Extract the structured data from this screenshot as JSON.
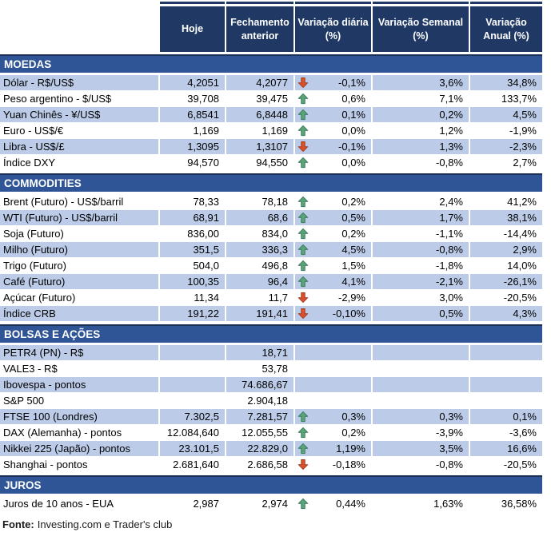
{
  "table": {
    "columns": [
      "",
      "Hoje",
      "Fechamento anterior",
      "Variação diária (%)",
      "Variação Semanal (%)",
      "Variação Anual (%)"
    ]
  },
  "sections": [
    {
      "title": "MOEDAS",
      "first_row_shaded": true,
      "rows": [
        {
          "label": "Dólar - R$/US$",
          "hoje": "4,2051",
          "fech": "4,2077",
          "arrow": "down",
          "vdia": "-0,1%",
          "vsem": "3,6%",
          "vanual": "34,8%"
        },
        {
          "label": "Peso argentino - $/US$",
          "hoje": "39,708",
          "fech": "39,475",
          "arrow": "up",
          "vdia": "0,6%",
          "vsem": "7,1%",
          "vanual": "133,7%"
        },
        {
          "label": "Yuan Chinês - ¥/US$",
          "hoje": "6,8541",
          "fech": "6,8448",
          "arrow": "up",
          "vdia": "0,1%",
          "vsem": "0,2%",
          "vanual": "4,5%"
        },
        {
          "label": "Euro - US$/€",
          "hoje": "1,169",
          "fech": "1,169",
          "arrow": "up",
          "vdia": "0,0%",
          "vsem": "1,2%",
          "vanual": "-1,9%"
        },
        {
          "label": "Libra - US$/£",
          "hoje": "1,3095",
          "fech": "1,3107",
          "arrow": "down",
          "vdia": "-0,1%",
          "vsem": "1,3%",
          "vanual": "-2,3%"
        },
        {
          "label": "Índice DXY",
          "hoje": "94,570",
          "fech": "94,550",
          "arrow": "up",
          "vdia": "0,0%",
          "vsem": "-0,8%",
          "vanual": "2,7%"
        }
      ]
    },
    {
      "title": "COMMODITIES",
      "first_row_shaded": false,
      "rows": [
        {
          "label": "Brent (Futuro) - US$/barril",
          "hoje": "78,33",
          "fech": "78,18",
          "arrow": "up",
          "vdia": "0,2%",
          "vsem": "2,4%",
          "vanual": "41,2%"
        },
        {
          "label": "WTI (Futuro) - US$/barril",
          "hoje": "68,91",
          "fech": "68,6",
          "arrow": "up",
          "vdia": "0,5%",
          "vsem": "1,7%",
          "vanual": "38,1%"
        },
        {
          "label": "Soja (Futuro)",
          "hoje": "836,00",
          "fech": "834,0",
          "arrow": "up",
          "vdia": "0,2%",
          "vsem": "-1,1%",
          "vanual": "-14,4%"
        },
        {
          "label": "Milho (Futuro)",
          "hoje": "351,5",
          "fech": "336,3",
          "arrow": "up",
          "vdia": "4,5%",
          "vsem": "-0,8%",
          "vanual": "2,9%"
        },
        {
          "label": "Trigo (Futuro)",
          "hoje": "504,0",
          "fech": "496,8",
          "arrow": "up",
          "vdia": "1,5%",
          "vsem": "-1,8%",
          "vanual": "14,0%"
        },
        {
          "label": "Café (Futuro)",
          "hoje": "100,35",
          "fech": "96,4",
          "arrow": "up",
          "vdia": "4,1%",
          "vsem": "-2,1%",
          "vanual": "-26,1%"
        },
        {
          "label": "Açúcar (Futuro)",
          "hoje": "11,34",
          "fech": "11,7",
          "arrow": "down",
          "vdia": "-2,9%",
          "vsem": "3,0%",
          "vanual": "-20,5%"
        },
        {
          "label": "Índice CRB",
          "hoje": "191,22",
          "fech": "191,41",
          "arrow": "down",
          "vdia": "-0,10%",
          "vsem": "0,5%",
          "vanual": "4,3%"
        }
      ]
    },
    {
      "title": "BOLSAS E AÇÕES",
      "first_row_shaded": true,
      "rows": [
        {
          "label": "PETR4 (PN) - R$",
          "hoje": "",
          "fech": "18,71",
          "arrow": "",
          "vdia": "",
          "vsem": "",
          "vanual": ""
        },
        {
          "label": "VALE3 - R$",
          "hoje": "",
          "fech": "53,78",
          "arrow": "",
          "vdia": "",
          "vsem": "",
          "vanual": ""
        },
        {
          "label": "Ibovespa - pontos",
          "hoje": "",
          "fech": "74.686,67",
          "arrow": "",
          "vdia": "",
          "vsem": "",
          "vanual": ""
        },
        {
          "label": "S&P 500",
          "hoje": "",
          "fech": "2.904,18",
          "arrow": "",
          "vdia": "",
          "vsem": "",
          "vanual": ""
        },
        {
          "label": "FTSE 100 (Londres)",
          "hoje": "7.302,5",
          "fech": "7.281,57",
          "arrow": "up",
          "vdia": "0,3%",
          "vsem": "0,3%",
          "vanual": "0,1%"
        },
        {
          "label": "DAX (Alemanha) - pontos",
          "hoje": "12.084,640",
          "fech": "12.055,55",
          "arrow": "up",
          "vdia": "0,2%",
          "vsem": "-3,9%",
          "vanual": "-3,6%"
        },
        {
          "label": "Nikkei 225 (Japão) - pontos",
          "hoje": "23.101,5",
          "fech": "22.829,0",
          "arrow": "up",
          "vdia": "1,19%",
          "vsem": "3,5%",
          "vanual": "16,6%"
        },
        {
          "label": "Shanghai - pontos",
          "hoje": "2.681,640",
          "fech": "2.686,58",
          "arrow": "down",
          "vdia": "-0,18%",
          "vsem": "-0,8%",
          "vanual": "-20,5%"
        }
      ]
    },
    {
      "title": "JUROS",
      "first_row_shaded": false,
      "rows": [
        {
          "label": "Juros de 10 anos - EUA",
          "hoje": "2,987",
          "fech": "2,974",
          "arrow": "up",
          "vdia": "0,44%",
          "vsem": "1,63%",
          "vanual": "36,58%"
        }
      ]
    }
  ],
  "footer": {
    "label": "Fonte:",
    "text": "Investing.com e Trader's club"
  },
  "colors": {
    "header-bg": "#1F3864",
    "header-text": "#FFFFFF",
    "section-bg": "#2F5597",
    "section-border": "#1B3055",
    "row-shaded": "#BCCCE8",
    "text": "#000000",
    "arrow-up": "#5BA27B",
    "arrow-up-stroke": "#2F7757",
    "arrow-down": "#D8502B",
    "arrow-down-stroke": "#9E3A1F"
  },
  "icons": {
    "up": "arrow-up-icon",
    "down": "arrow-down-icon"
  }
}
